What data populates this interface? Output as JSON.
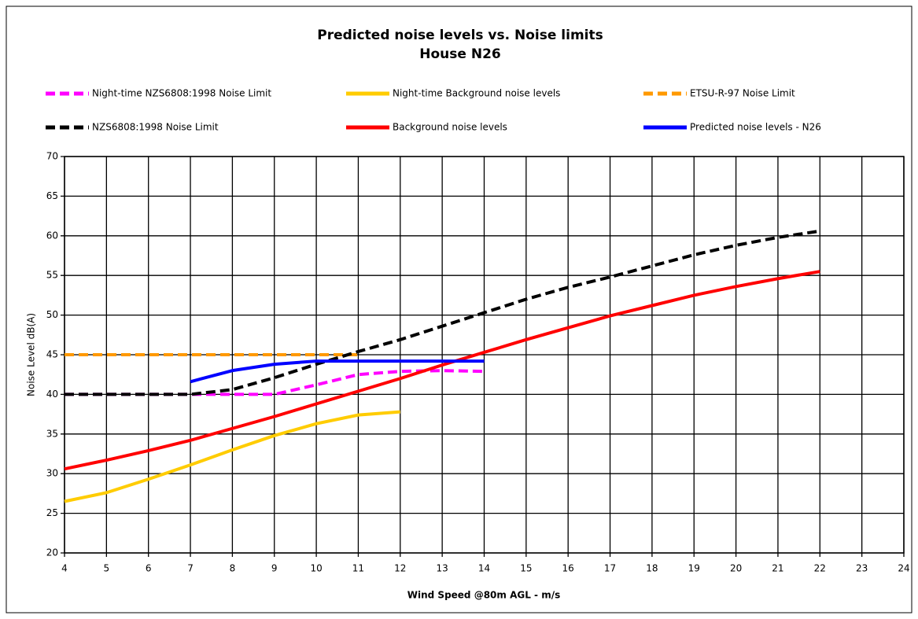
{
  "chart_data": {
    "type": "line",
    "title": "Predicted noise levels vs. Noise limits",
    "subtitle": "House N26",
    "x_label": "Wind Speed @80m AGL - m/s",
    "y_label": "Noise Level dB(A)",
    "xlim": [
      4,
      24
    ],
    "xticks": [
      4,
      5,
      6,
      7,
      8,
      9,
      10,
      11,
      12,
      13,
      14,
      15,
      16,
      17,
      18,
      19,
      20,
      21,
      22,
      23,
      24
    ],
    "ylim": [
      20,
      70
    ],
    "yticks": [
      20,
      25,
      30,
      35,
      40,
      45,
      50,
      55,
      60,
      65,
      70
    ],
    "grid": true,
    "legend": "top",
    "series": [
      {
        "name": "Night-time NZS6808:1998 Noise Limit",
        "color": "#ff00ff",
        "dashed": true,
        "x": [
          4,
          5,
          6,
          7,
          8,
          9,
          10,
          11,
          12,
          13,
          14
        ],
        "values": [
          40,
          40,
          40,
          40,
          40,
          40,
          41.2,
          42.5,
          42.9,
          43,
          42.9
        ]
      },
      {
        "name": "Night-time Background noise levels",
        "color": "#ffcc00",
        "dashed": false,
        "x": [
          4,
          5,
          6,
          7,
          8,
          9,
          10,
          11,
          12
        ],
        "values": [
          26.5,
          27.6,
          29.3,
          31.1,
          33,
          34.8,
          36.3,
          37.4,
          37.8
        ]
      },
      {
        "name": "ETSU-R-97 Noise Limit",
        "color": "#ff9900",
        "dashed": true,
        "x": [
          4,
          5,
          6,
          7,
          8,
          9,
          10,
          11
        ],
        "values": [
          45,
          45,
          45,
          45,
          45,
          45,
          45,
          45
        ]
      },
      {
        "name": "NZS6808:1998 Noise Limit",
        "color": "#000000",
        "dashed": true,
        "x": [
          4,
          5,
          6,
          7,
          8,
          9,
          10,
          11,
          12,
          13,
          14,
          15,
          16,
          17,
          18,
          19,
          20,
          21,
          22
        ],
        "values": [
          40,
          40,
          40,
          40,
          40.6,
          42.1,
          43.8,
          45.4,
          46.9,
          48.6,
          50.3,
          52,
          53.5,
          54.8,
          56.2,
          57.6,
          58.8,
          59.8,
          60.6
        ]
      },
      {
        "name": "Background noise levels",
        "color": "#ff0000",
        "dashed": false,
        "x": [
          4,
          5,
          6,
          7,
          8,
          9,
          10,
          11,
          12,
          13,
          14,
          15,
          16,
          17,
          18,
          19,
          20,
          21,
          22
        ],
        "values": [
          30.6,
          31.7,
          32.9,
          34.2,
          35.7,
          37.2,
          38.8,
          40.4,
          42,
          43.7,
          45.3,
          46.9,
          48.4,
          49.9,
          51.2,
          52.5,
          53.6,
          54.6,
          55.5
        ]
      },
      {
        "name": "Predicted noise levels - N26",
        "color": "#0000ff",
        "dashed": false,
        "x": [
          7,
          8,
          9,
          10,
          11,
          12,
          13,
          14
        ],
        "values": [
          41.6,
          43,
          43.8,
          44.2,
          44.2,
          44.2,
          44.2,
          44.2
        ]
      }
    ]
  }
}
